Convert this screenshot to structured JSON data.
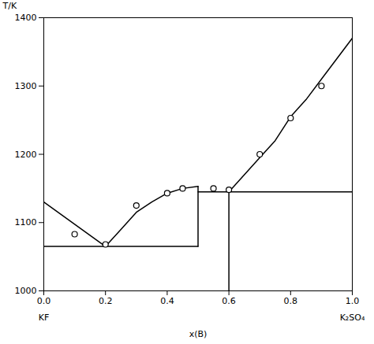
{
  "chart_data": {
    "type": "line",
    "xlabel": "x(B)",
    "ylabel": "T/K",
    "xlim": [
      0.0,
      1.0
    ],
    "ylim": [
      1000,
      1400
    ],
    "xticks": [
      {
        "value": 0.0,
        "label": "0.0"
      },
      0.2,
      0.4,
      0.6,
      0.8,
      {
        "value": 1.0,
        "label": "1.0"
      }
    ],
    "yticks": [
      1000,
      1100,
      1200,
      1300,
      1400
    ],
    "grid": false,
    "series": [
      {
        "type": "line",
        "color": "#000000",
        "x": [
          0.0,
          0.2
        ],
        "values": [
          1130,
          1065
        ]
      },
      {
        "type": "line",
        "color": "#000000",
        "x": [
          0.2,
          0.25,
          0.3,
          0.35,
          0.4,
          0.45,
          0.5
        ],
        "values": [
          1065,
          1090,
          1115,
          1130,
          1143,
          1150,
          1153
        ]
      },
      {
        "type": "line",
        "color": "#000000",
        "x": [
          0.6,
          0.65,
          0.7,
          0.75,
          0.8,
          0.85,
          0.9,
          0.95,
          1.0
        ],
        "values": [
          1145,
          1170,
          1195,
          1220,
          1255,
          1280,
          1310,
          1340,
          1370
        ]
      },
      {
        "type": "line",
        "color": "#000000",
        "x": [
          0.0,
          0.5
        ],
        "values": [
          1065,
          1065
        ]
      },
      {
        "type": "line",
        "color": "#000000",
        "x": [
          0.5,
          1.0
        ],
        "values": [
          1145,
          1145
        ]
      },
      {
        "type": "line",
        "color": "#000000",
        "x": [
          0.5,
          0.5
        ],
        "values": [
          1065,
          1153
        ]
      },
      {
        "type": "line",
        "color": "#000000",
        "x": [
          0.6,
          0.6
        ],
        "values": [
          1000,
          1145
        ]
      },
      {
        "type": "scatter",
        "color": "#000000",
        "marker": "circle",
        "x": [
          0.1,
          0.2,
          0.3,
          0.4,
          0.45,
          0.55,
          0.6,
          0.7,
          0.8,
          0.9
        ],
        "values": [
          1083,
          1068,
          1125,
          1143,
          1150,
          1150,
          1148,
          1200,
          1253,
          1300
        ]
      }
    ],
    "annotations": [
      {
        "text": "KF",
        "x": 0.0
      },
      {
        "text": "K₂SO₄",
        "x": 1.0
      }
    ]
  }
}
